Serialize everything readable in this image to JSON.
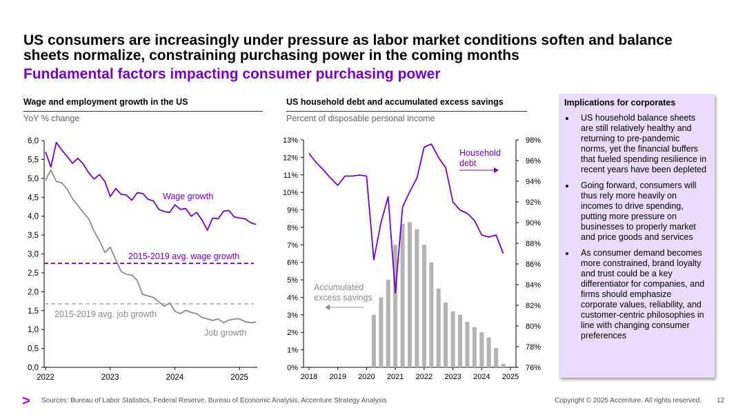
{
  "header": {
    "title": "US consumers are increasingly under pressure as labor market conditions soften and balance sheets normalize, constraining purchasing power in the coming months",
    "subtitle": "Fundamental factors impacting consumer purchasing power"
  },
  "colors": {
    "purple": "#7500c0",
    "gray": "#8c8c8c",
    "light_gray": "#b3b3b3",
    "accent": "#a100ff",
    "panel": "#e9ddfb"
  },
  "chart_data": [
    {
      "type": "line",
      "title": "Wage and employment growth in the US",
      "ylabel": "YoY % change",
      "ylim": [
        0,
        6
      ],
      "y_ticks": [
        "0,0",
        "0,5",
        "1,0",
        "1,5",
        "2,0",
        "2,5",
        "3,0",
        "3,5",
        "4,0",
        "4,5",
        "5,0",
        "5,5",
        "6,0"
      ],
      "x_ticks": [
        {
          "label": "2022",
          "year": 2022
        },
        {
          "label": "2023",
          "year": 2023
        },
        {
          "label": "2024",
          "year": 2024
        },
        {
          "label": "2025",
          "year": 2025
        }
      ],
      "xlim_years": [
        2022,
        2025.3
      ],
      "series": [
        {
          "name": "Wage growth",
          "values": [
            5.7,
            5.3,
            5.95,
            5.75,
            5.58,
            5.4,
            5.53,
            5.38,
            5.15,
            4.98,
            5.1,
            4.92,
            4.52,
            4.73,
            4.58,
            4.56,
            4.42,
            4.62,
            4.6,
            4.45,
            4.4,
            4.18,
            4.12,
            4.1,
            4.3,
            4.18,
            4.2,
            4.0,
            4.1,
            3.9,
            3.63,
            3.95,
            3.93,
            4.13,
            4.15,
            3.98,
            3.95,
            3.93,
            3.83,
            3.78
          ]
        },
        {
          "name": "Job growth",
          "values": [
            4.95,
            5.22,
            4.92,
            4.88,
            4.72,
            4.46,
            4.28,
            4.1,
            3.93,
            3.6,
            3.35,
            3.04,
            3.18,
            2.85,
            2.54,
            2.46,
            2.44,
            2.3,
            1.93,
            1.89,
            1.85,
            1.73,
            1.62,
            1.7,
            1.48,
            1.42,
            1.51,
            1.45,
            1.42,
            1.32,
            1.28,
            1.24,
            1.28,
            1.18,
            1.25,
            1.28,
            1.28,
            1.21,
            1.18,
            1.2
          ]
        }
      ],
      "reference_lines": [
        {
          "name": "2015-2019 avg. wage growth",
          "value": 2.75
        },
        {
          "name": "2015-2019 avg. job growth",
          "value": 1.68
        }
      ]
    },
    {
      "type": "bar+line",
      "title": "US household debt and accumulated excess savings",
      "ylabel": "Percent of disposable personal income",
      "left_axis": {
        "ylim": [
          0,
          13
        ],
        "ticks": [
          "0%",
          "1%",
          "2%",
          "3%",
          "4%",
          "5%",
          "6%",
          "7%",
          "8%",
          "9%",
          "10%",
          "11%",
          "12%",
          "13%"
        ]
      },
      "right_axis": {
        "ylim": [
          76,
          98
        ],
        "ticks": [
          "76%",
          "78%",
          "80%",
          "82%",
          "84%",
          "86%",
          "88%",
          "90%",
          "92%",
          "94%",
          "96%",
          "98%"
        ]
      },
      "x_ticks": [
        {
          "label": "2018",
          "year": 2018
        },
        {
          "label": "2019",
          "year": 2019
        },
        {
          "label": "2020",
          "year": 2020
        },
        {
          "label": "2021",
          "year": 2021
        },
        {
          "label": "2022",
          "year": 2022
        },
        {
          "label": "2023",
          "year": 2023
        },
        {
          "label": "2024",
          "year": 2024
        },
        {
          "label": "2025",
          "year": 2025
        }
      ],
      "xlim_years": [
        2018,
        2025
      ],
      "bars": {
        "name": "Accumulated excess savings",
        "axis": "left",
        "x": [
          2020.25,
          2020.5,
          2020.75,
          2021.0,
          2021.25,
          2021.5,
          2021.75,
          2022.0,
          2022.25,
          2022.5,
          2022.75,
          2023.0,
          2023.25,
          2023.5,
          2023.75,
          2024.0,
          2024.25,
          2024.5,
          2024.75
        ],
        "values": [
          3.0,
          4.0,
          5.0,
          7.0,
          8.2,
          8.3,
          7.9,
          7.0,
          6.0,
          4.5,
          3.7,
          3.2,
          3.0,
          2.6,
          2.3,
          2.0,
          1.7,
          1.1,
          0.2
        ]
      },
      "line": {
        "name": "Household debt",
        "axis": "right",
        "x": [
          2018.0,
          2018.25,
          2018.5,
          2018.75,
          2019.0,
          2019.25,
          2019.5,
          2019.75,
          2020.0,
          2020.25,
          2020.5,
          2020.75,
          2021.0,
          2021.25,
          2021.5,
          2021.75,
          2022.0,
          2022.25,
          2022.5,
          2022.75,
          2023.0,
          2023.25,
          2023.5,
          2023.75,
          2024.0,
          2024.25,
          2024.5,
          2024.75
        ],
        "values": [
          96.7,
          95.8,
          95.1,
          94.3,
          93.6,
          94.5,
          94.5,
          94.6,
          94.5,
          86.4,
          90.0,
          92.5,
          83.2,
          91.5,
          93.0,
          94.3,
          97.3,
          97.6,
          96.3,
          95.3,
          92.0,
          91.2,
          90.9,
          90.2,
          88.8,
          88.6,
          88.8,
          87.0
        ]
      },
      "annotations": [
        "Household debt",
        "Accumulated excess savings"
      ]
    }
  ],
  "labels": {
    "wage_growth": "Wage growth",
    "job_growth": "Job growth",
    "avg_wage": "2015-2019 avg. wage growth",
    "avg_job": "2015-2019 avg. job growth",
    "household_debt_1": "Household",
    "household_debt_2": "debt",
    "savings_1": "Accumulated",
    "savings_2": "excess savings"
  },
  "implications": {
    "title": "Implications for corporates",
    "bullets": [
      "US household balance sheets are still relatively healthy and returning to pre-pandemic norms, yet the financial buffers that fueled spending resilience in recent years have been depleted",
      "Going forward, consumers will thus rely more heavily on incomes to drive spending, putting more pressure on businesses to properly market and price goods and services",
      "As consumer demand becomes more constrained, brand loyalty and trust could be a key differentiator for companies, and firms should emphasize corporate values, reliability, and customer-centric philosophies in line with changing consumer preferences"
    ]
  },
  "footer": {
    "logo": ">",
    "sources": "Sources: Bureau of Labor Statistics, Federal Reserve, Bureau of Economic Analysis, Accenture Strategy Analysis",
    "copyright": "Copyright © 2025 Accenture. All rights reserved.",
    "page_number": "12"
  }
}
